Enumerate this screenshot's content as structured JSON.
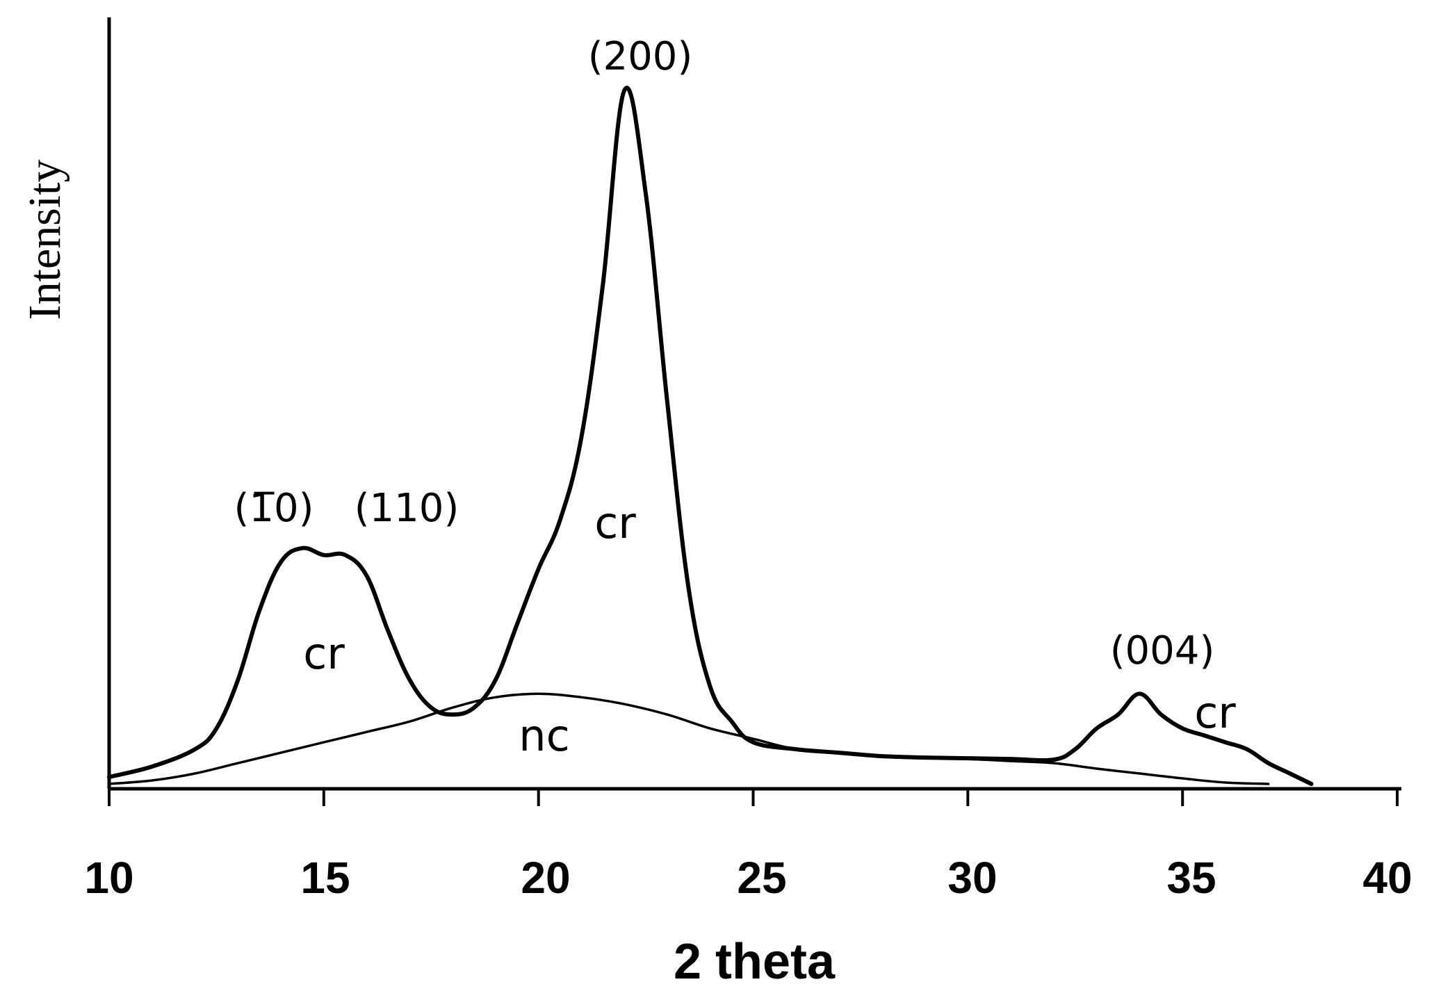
{
  "chart_data": {
    "type": "line",
    "xlabel": "2 theta",
    "ylabel": "Intensity",
    "xlim": [
      10,
      40
    ],
    "ylim": [
      0,
      100
    ],
    "x_ticks": [
      "10",
      "15",
      "20",
      "25",
      "30",
      "35",
      "40"
    ],
    "grid": false,
    "legend": "none",
    "series": [
      {
        "x": [
          10,
          11,
          12,
          12.5,
          13,
          13.5,
          14,
          14.5,
          15,
          15.5,
          16,
          16.5,
          17,
          17.5,
          18,
          18.5,
          19,
          19.5,
          20,
          20.5,
          21,
          21.5,
          22,
          22.5,
          23,
          23.5,
          24,
          24.5,
          25,
          26,
          27,
          28,
          29,
          30,
          31,
          32,
          32.5,
          33,
          33.5,
          34,
          34.5,
          35,
          35.5,
          36,
          36.5,
          37,
          37.5,
          38
        ],
        "y": [
          1,
          2.5,
          5,
          8,
          15,
          25,
          32,
          34,
          33,
          33,
          30,
          22,
          15,
          11,
          10,
          11,
          15,
          23,
          31,
          38,
          50,
          72,
          100,
          85,
          55,
          28,
          14,
          9,
          6,
          5,
          4.5,
          4,
          3.8,
          3.7,
          3.6,
          3.5,
          5,
          8,
          10,
          13,
          10,
          8,
          7,
          6,
          5,
          3,
          1.5,
          0
        ]
      },
      {
        "x": [
          10,
          11,
          12,
          13,
          14,
          15,
          16,
          17,
          18,
          19,
          20,
          21,
          22,
          23,
          24,
          25,
          26,
          27,
          28,
          29,
          30,
          31,
          32,
          33,
          34,
          35,
          36,
          37
        ],
        "y": [
          0,
          0.5,
          1.5,
          3,
          4.5,
          6,
          7.5,
          9,
          11,
          12.5,
          13,
          12.5,
          11.5,
          10,
          8,
          6.5,
          5,
          4.5,
          4,
          3.8,
          3.6,
          3.3,
          3,
          2.2,
          1.5,
          0.8,
          0.2,
          0
        ]
      }
    ],
    "annotations": [
      "(1̅0)",
      "(110)",
      "(200)",
      "(004)",
      "cr",
      "cr",
      "cr",
      "nc"
    ]
  }
}
